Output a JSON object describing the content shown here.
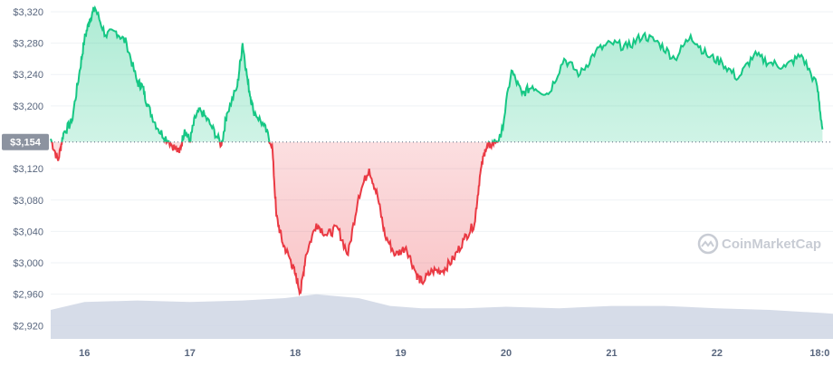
{
  "chart_data": {
    "type": "line",
    "y_ticks": [
      "$3,320",
      "$3,280",
      "$3,240",
      "$3,200",
      "$3,120",
      "$3,080",
      "$3,040",
      "$3,000",
      "$2,960",
      "$2,920"
    ],
    "y_tick_values": [
      3320,
      3280,
      3240,
      3200,
      3120,
      3080,
      3040,
      3000,
      2960,
      2920
    ],
    "x_ticks": [
      "16",
      "17",
      "18",
      "19",
      "20",
      "21",
      "22",
      "18:0"
    ],
    "x_tick_values": [
      16,
      17,
      18,
      19,
      20,
      21,
      22,
      23
    ],
    "reference_value": 3154,
    "reference_label": "$3,154",
    "ylim": [
      2903,
      3335
    ],
    "xlim": [
      15.68,
      23.1
    ],
    "grid": "horizontal",
    "colors": {
      "above": "#16c784",
      "below": "#ea3943",
      "volume": "#cfd6e4",
      "grid": "#eff2f5"
    },
    "price": {
      "x": [
        15.68,
        15.75,
        15.8,
        15.88,
        15.95,
        16.0,
        16.05,
        16.1,
        16.2,
        16.3,
        16.4,
        16.5,
        16.55,
        16.6,
        16.7,
        16.8,
        16.9,
        16.95,
        17.0,
        17.05,
        17.1,
        17.2,
        17.3,
        17.35,
        17.45,
        17.5,
        17.55,
        17.6,
        17.7,
        17.78,
        17.82,
        17.88,
        17.95,
        18.0,
        18.05,
        18.1,
        18.2,
        18.3,
        18.4,
        18.5,
        18.6,
        18.7,
        18.78,
        18.85,
        18.95,
        19.05,
        19.15,
        19.2,
        19.3,
        19.4,
        19.5,
        19.6,
        19.7,
        19.75,
        19.8,
        19.85,
        19.95,
        20.05,
        20.15,
        20.25,
        20.4,
        20.55,
        20.7,
        20.85,
        21.0,
        21.15,
        21.3,
        21.45,
        21.6,
        21.75,
        21.9,
        22.05,
        22.2,
        22.35,
        22.5,
        22.65,
        22.8,
        22.95,
        23.0
      ],
      "y": [
        3158,
        3130,
        3165,
        3180,
        3240,
        3285,
        3310,
        3325,
        3290,
        3295,
        3280,
        3230,
        3225,
        3200,
        3170,
        3155,
        3140,
        3170,
        3155,
        3185,
        3195,
        3175,
        3150,
        3190,
        3225,
        3280,
        3230,
        3195,
        3175,
        3150,
        3060,
        3025,
        3005,
        2985,
        2962,
        3010,
        3050,
        3035,
        3045,
        3010,
        3085,
        3120,
        3085,
        3035,
        3010,
        3020,
        2985,
        2975,
        2990,
        2990,
        3005,
        3030,
        3050,
        3110,
        3145,
        3150,
        3160,
        3245,
        3215,
        3225,
        3215,
        3260,
        3240,
        3270,
        3280,
        3275,
        3290,
        3280,
        3260,
        3290,
        3265,
        3255,
        3235,
        3265,
        3255,
        3250,
        3265,
        3225,
        3170
      ]
    },
    "volume": {
      "x": [
        15.68,
        16.0,
        16.5,
        17.0,
        17.5,
        17.9,
        18.2,
        18.6,
        18.9,
        19.2,
        19.6,
        20.0,
        20.5,
        21.0,
        21.5,
        22.0,
        22.5,
        23.0,
        23.1
      ],
      "y": [
        2940,
        2950,
        2952,
        2950,
        2952,
        2955,
        2960,
        2955,
        2945,
        2942,
        2942,
        2944,
        2942,
        2945,
        2945,
        2942,
        2940,
        2936,
        2935
      ]
    }
  },
  "watermark": {
    "text": "CoinMarketCap",
    "icon": "coinmarketcap-logo-icon"
  }
}
